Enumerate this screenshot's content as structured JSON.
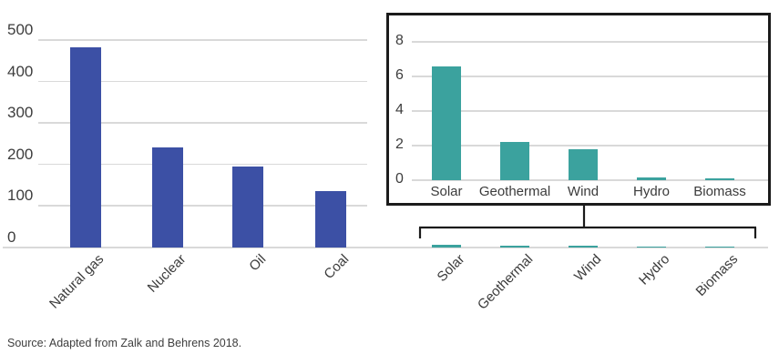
{
  "figure": {
    "source_note": "Source: Adapted from Zalk and Behrens 2018.",
    "colors": {
      "fossil_bar": "#3c50a5",
      "renewable_bar": "#3ba29e",
      "gridline": "#d9d9d9",
      "text": "#3b3b3b",
      "inset_border": "#1b1b1b"
    }
  },
  "chart_data": [
    {
      "type": "bar",
      "name": "main-power-density-chart",
      "title": "",
      "xlabel": "",
      "ylabel": "",
      "categories": [
        "Natural gas",
        "Nuclear",
        "Oil",
        "Coal",
        "Solar",
        "Geothermal",
        "Wind",
        "Hydro",
        "Biomass"
      ],
      "values": [
        482,
        241,
        195,
        135,
        6.6,
        2.2,
        1.8,
        0.15,
        0.08
      ],
      "groups": [
        "fossil",
        "fossil",
        "fossil",
        "fossil",
        "renewable",
        "renewable",
        "renewable",
        "renewable",
        "renewable"
      ],
      "ylim": [
        0,
        500
      ],
      "yticks": [
        0,
        100,
        200,
        300,
        400,
        500
      ],
      "grid": true,
      "legend": "none"
    },
    {
      "type": "bar",
      "name": "renewables-inset-chart",
      "title": "",
      "xlabel": "",
      "ylabel": "",
      "categories": [
        "Solar",
        "Geothermal",
        "Wind",
        "Hydro",
        "Biomass"
      ],
      "values": [
        6.6,
        2.2,
        1.8,
        0.15,
        0.08
      ],
      "ylim": [
        0,
        8
      ],
      "yticks": [
        0,
        2,
        4,
        6,
        8
      ],
      "grid": true,
      "legend": "none"
    }
  ]
}
